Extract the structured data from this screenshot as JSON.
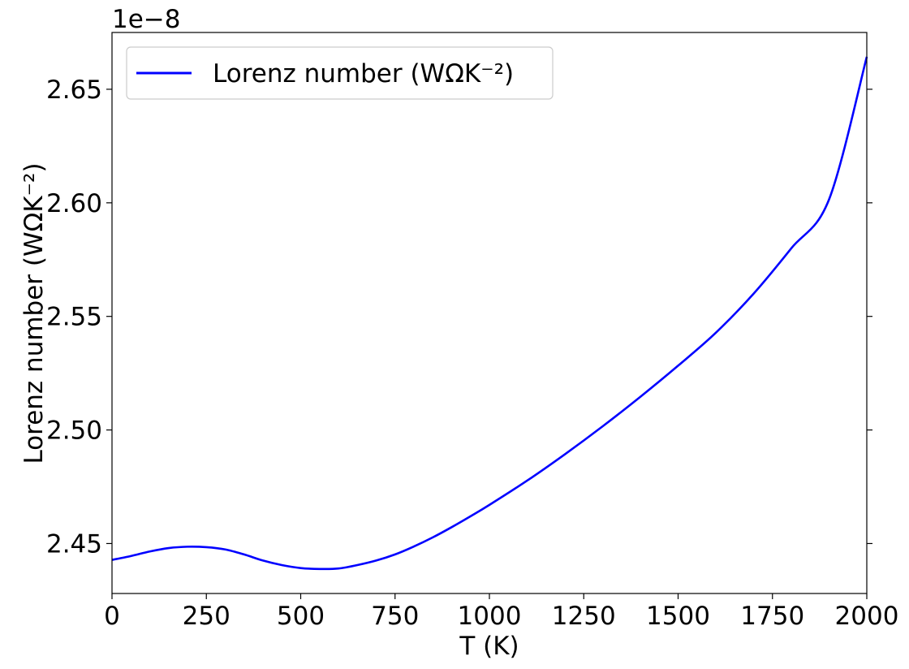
{
  "chart_data": {
    "type": "line",
    "title": "",
    "xlabel": "T (K)",
    "ylabel": "Lorenz number (WΩK⁻²)",
    "y_offset_label": "1e−8",
    "xlim": [
      0,
      2000
    ],
    "ylim": [
      2.428,
      2.675
    ],
    "xticks": [
      0,
      250,
      500,
      750,
      1000,
      1250,
      1500,
      1750,
      2000
    ],
    "xtick_labels": [
      "0",
      "250",
      "500",
      "750",
      "1000",
      "1250",
      "1500",
      "1750",
      "2000"
    ],
    "yticks": [
      2.45,
      2.5,
      2.55,
      2.6,
      2.65
    ],
    "ytick_labels": [
      "2.45",
      "2.50",
      "2.55",
      "2.60",
      "2.65"
    ],
    "grid": false,
    "legend_position": "upper-left",
    "series": [
      {
        "name": "Lorenz number (WΩK⁻²)",
        "color": "#0000ff",
        "x": [
          0,
          50,
          100,
          150,
          200,
          250,
          300,
          350,
          400,
          450,
          500,
          550,
          600,
          650,
          700,
          750,
          800,
          850,
          900,
          950,
          1000,
          1100,
          1200,
          1300,
          1400,
          1500,
          1600,
          1700,
          1800,
          1900,
          2000
        ],
        "y": [
          2.4428,
          2.4445,
          2.4465,
          2.448,
          2.4486,
          2.4484,
          2.4474,
          2.4452,
          2.4425,
          2.4405,
          2.4392,
          2.4388,
          2.439,
          2.4405,
          2.4425,
          2.4452,
          2.4487,
          2.4527,
          2.4572,
          2.462,
          2.467,
          2.4777,
          2.4893,
          2.5016,
          2.5146,
          2.5283,
          2.5428,
          2.56,
          2.58,
          2.6015,
          2.6643
        ]
      }
    ]
  }
}
